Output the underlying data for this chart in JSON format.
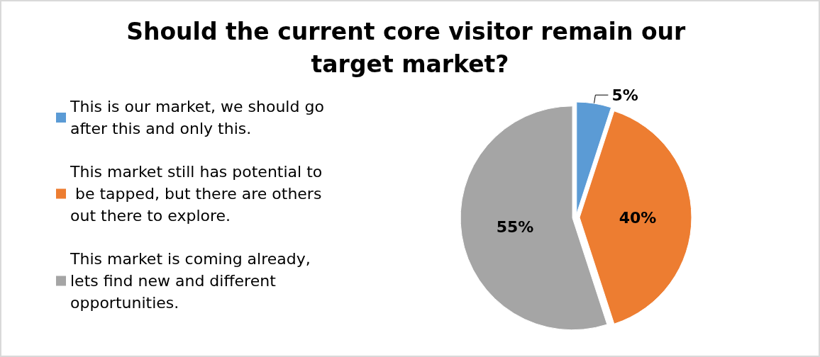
{
  "chart_data": {
    "type": "pie",
    "title": "Should the current core visitor remain our target market?",
    "categories": [
      "This is our market, we should go after this and only this.",
      "This market still has potential to be tapped, but there are others out there to explore.",
      "This market is coming already, lets find new and different opportunities."
    ],
    "values": [
      5,
      40,
      55
    ],
    "colors": [
      "#5b9bd5",
      "#ed7d31",
      "#a5a5a5"
    ],
    "value_labels": [
      "5%",
      "40%",
      "55%"
    ],
    "legend": "left"
  }
}
